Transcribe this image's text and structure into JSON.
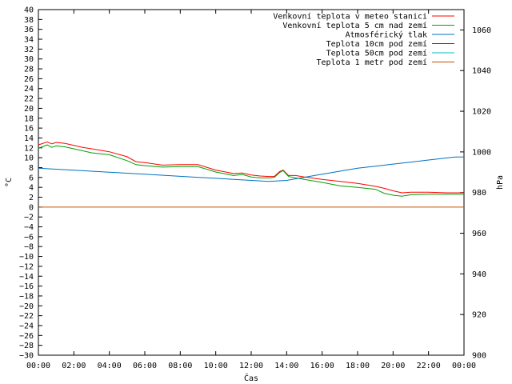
{
  "chart_data": {
    "type": "line",
    "xlabel": "Čas",
    "ylabel": "°C",
    "y2label": "hPa",
    "x_ticks": [
      "00:00",
      "02:00",
      "04:00",
      "06:00",
      "08:00",
      "10:00",
      "12:00",
      "14:00",
      "16:00",
      "18:00",
      "20:00",
      "22:00",
      "00:00"
    ],
    "xlim_hours": [
      0,
      24
    ],
    "ylim": [
      -30,
      40
    ],
    "y_ticks": [
      40,
      38,
      36,
      34,
      32,
      30,
      28,
      26,
      24,
      22,
      20,
      18,
      16,
      14,
      12,
      10,
      8,
      6,
      4,
      2,
      0,
      -2,
      -4,
      -6,
      -8,
      -10,
      -12,
      -14,
      -16,
      -18,
      -20,
      -22,
      -24,
      -26,
      -28,
      -30
    ],
    "y2lim": [
      900,
      1070
    ],
    "y2_ticks": [
      1060,
      1040,
      1020,
      1000,
      980,
      960,
      940,
      920,
      900
    ],
    "legend_position": "top-right",
    "grid": false,
    "series": [
      {
        "name": "Venkovní teplota v meteo stanici",
        "color": "#ff0000",
        "axis": "left",
        "x": [
          0,
          0.5,
          0.75,
          1,
          1.5,
          2,
          2.5,
          3,
          4,
          5,
          5.5,
          6,
          7,
          8,
          9,
          10,
          11,
          11.5,
          12,
          12.5,
          13,
          13.3,
          13.6,
          13.8,
          14.1,
          14.5,
          15,
          16,
          17,
          18,
          19,
          19.5,
          20,
          20.5,
          21,
          22,
          23,
          24
        ],
        "values": [
          12.6,
          13.2,
          12.8,
          13.1,
          12.9,
          12.5,
          12.1,
          11.8,
          11.2,
          10.2,
          9.2,
          9.0,
          8.5,
          8.6,
          8.6,
          7.5,
          6.8,
          6.9,
          6.5,
          6.3,
          6.2,
          6.2,
          7.2,
          7.5,
          6.4,
          6.4,
          6.1,
          5.6,
          5.2,
          4.8,
          4.2,
          3.8,
          3.3,
          2.9,
          3.0,
          3.0,
          2.9,
          2.9
        ]
      },
      {
        "name": "Venkovní teplota 5 cm nad zemí",
        "color": "#00a000",
        "axis": "left",
        "x": [
          0,
          0.5,
          0.75,
          1,
          1.5,
          2,
          2.5,
          3,
          4,
          5,
          5.5,
          6,
          7,
          8,
          9,
          10,
          11,
          11.5,
          12,
          12.5,
          13,
          13.3,
          13.6,
          13.8,
          14.1,
          14.5,
          15,
          16,
          17,
          18,
          19,
          19.5,
          20,
          20.5,
          21,
          22,
          23,
          24
        ],
        "values": [
          11.9,
          12.6,
          12.1,
          12.4,
          12.2,
          11.8,
          11.4,
          11.0,
          10.6,
          9.4,
          8.6,
          8.4,
          8.1,
          8.2,
          8.2,
          7.1,
          6.4,
          6.6,
          6.1,
          5.9,
          5.9,
          6.0,
          7.0,
          7.4,
          6.2,
          5.9,
          5.6,
          5.0,
          4.3,
          4.0,
          3.6,
          2.8,
          2.4,
          2.2,
          2.5,
          2.6,
          2.6,
          2.6
        ]
      },
      {
        "name": "Atmosférický tlak",
        "color": "#0070c0",
        "axis": "right",
        "x": [
          0,
          2,
          4,
          6,
          8,
          10,
          12,
          13,
          14,
          15,
          16,
          17,
          18,
          19,
          20,
          21,
          22,
          23,
          23.5,
          24
        ],
        "values": [
          992,
          991,
          990,
          989,
          988,
          987,
          986,
          985.5,
          986,
          987.5,
          989,
          990.5,
          992,
          993,
          994,
          995,
          996,
          997,
          997.5,
          997.5
        ]
      },
      {
        "name": "Teplota 10cm pod zemí",
        "color": "#a000a0",
        "axis": "left",
        "x": [],
        "values": []
      },
      {
        "name": "Teplota 50cm pod zemí",
        "color": "#00c0c0",
        "axis": "left",
        "x": [],
        "values": []
      },
      {
        "name": "Teplota 1 metr pod zemí",
        "color": "#c05000",
        "axis": "left",
        "x": [
          0,
          24
        ],
        "values": [
          0,
          0
        ]
      }
    ]
  }
}
